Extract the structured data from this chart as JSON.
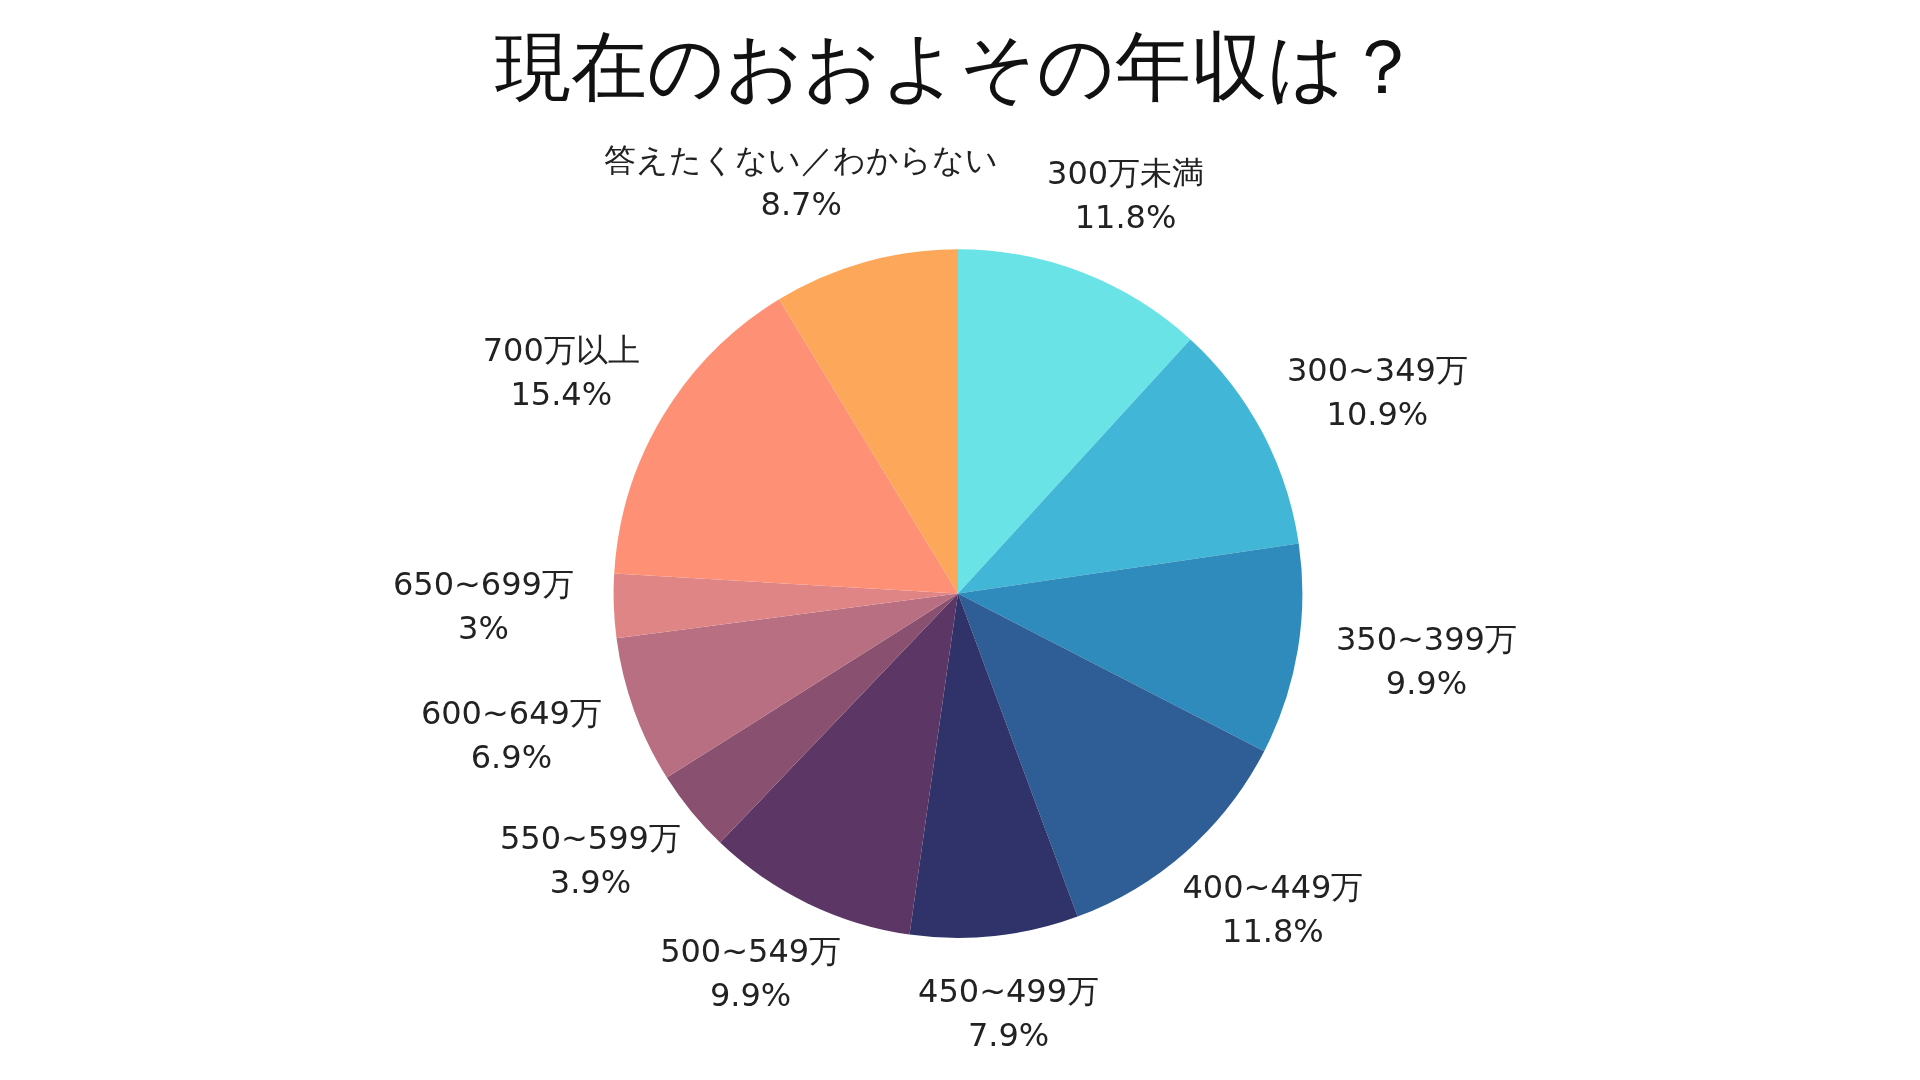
{
  "chart_data": {
    "type": "pie",
    "title": "現在のおおよその年収は？",
    "categories": [
      "300万未満",
      "300~349万",
      "350~399万",
      "400~449万",
      "450~499万",
      "500~549万",
      "550~599万",
      "600~649万",
      "650~699万",
      "700万以上",
      "答えたくない／わからない"
    ],
    "values": [
      11.8,
      10.9,
      9.9,
      11.8,
      7.9,
      9.9,
      3.9,
      6.9,
      3,
      15.4,
      8.7
    ],
    "value_labels": [
      "11.8%",
      "10.9%",
      "9.9%",
      "11.8%",
      "7.9%",
      "9.9%",
      "3.9%",
      "6.9%",
      "3%",
      "15.4%",
      "8.7%"
    ],
    "colors": [
      "#6ae3e6",
      "#42b6d6",
      "#2e8bbb",
      "#2e5e95",
      "#2f336a",
      "#5c3664",
      "#8a5070",
      "#b86f82",
      "#e08585",
      "#fd9075",
      "#fca75a"
    ],
    "legend": false
  }
}
